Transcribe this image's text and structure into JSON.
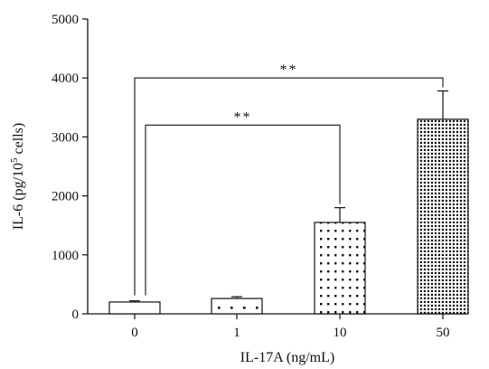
{
  "chart_data": {
    "type": "bar",
    "title": "",
    "xlabel": "IL-17A (ng/mL)",
    "ylabel_main": "IL-6 (pg/10",
    "ylabel_sup": "5",
    "ylabel_tail": " cells)",
    "ylim": [
      0,
      5000
    ],
    "yticks": [
      "0",
      "1000",
      "2000",
      "3000",
      "4000",
      "5000"
    ],
    "categories": [
      "0",
      "1",
      "10",
      "50"
    ],
    "values": [
      200,
      260,
      1550,
      3300
    ],
    "errors": [
      20,
      30,
      250,
      480
    ],
    "patterns": [
      "none",
      "sparse-dots",
      "medium-dots",
      "dense-dots"
    ],
    "grid": false,
    "significance": [
      {
        "from": 0,
        "to": 2,
        "label": "**",
        "level": 3200
      },
      {
        "from": 0,
        "to": 3,
        "label": "**",
        "level": 4000
      }
    ]
  }
}
